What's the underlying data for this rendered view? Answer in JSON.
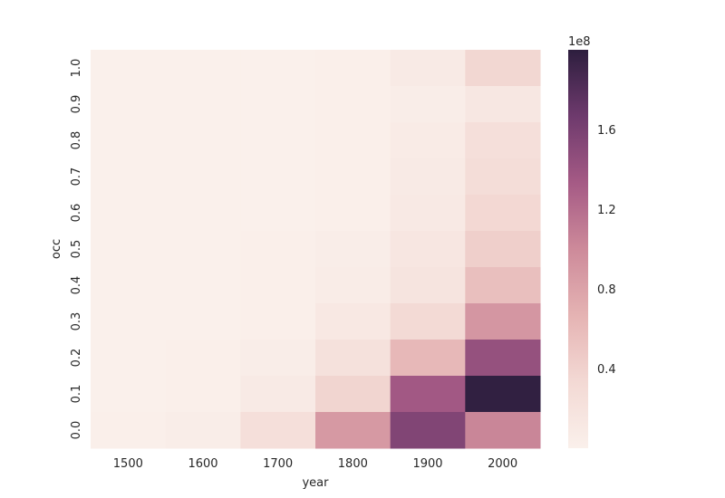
{
  "chart_data": {
    "type": "heatmap",
    "xlabel": "year",
    "ylabel": "occ",
    "x_categories": [
      "1500",
      "1600",
      "1700",
      "1800",
      "1900",
      "2000"
    ],
    "y_categories": [
      "1.0",
      "0.9",
      "0.8",
      "0.7",
      "0.6",
      "0.5",
      "0.4",
      "0.3",
      "0.2",
      "0.1",
      "0.0"
    ],
    "values": [
      [
        0,
        0,
        0,
        2000000,
        8000000,
        35000000
      ],
      [
        0,
        0,
        0,
        1000000,
        4000000,
        13000000
      ],
      [
        0,
        0,
        0,
        2000000,
        7000000,
        24000000
      ],
      [
        0,
        0,
        0,
        2000000,
        8000000,
        28000000
      ],
      [
        0,
        0,
        0,
        2000000,
        10000000,
        34000000
      ],
      [
        0,
        0,
        1000000,
        5000000,
        15000000,
        42000000
      ],
      [
        0,
        0,
        1000000,
        6000000,
        18000000,
        56000000
      ],
      [
        0,
        0,
        2000000,
        11000000,
        32000000,
        90000000
      ],
      [
        0,
        1000000,
        5000000,
        22000000,
        62000000,
        143000000
      ],
      [
        0,
        1000000,
        9000000,
        37000000,
        135000000,
        198000000
      ],
      [
        2000000,
        5000000,
        25000000,
        88000000,
        155000000,
        103000000
      ]
    ],
    "colorbar": {
      "min": 0,
      "max": 200000000,
      "ticks": [
        40000000,
        80000000,
        120000000,
        160000000
      ],
      "tick_labels": [
        "0.4",
        "0.8",
        "1.2",
        "1.6"
      ],
      "offset_label": "1e8"
    },
    "colormap": [
      "#faf0eb",
      "#f3d9d4",
      "#e5b3b3",
      "#cd8a9a",
      "#a55a85",
      "#6e3a6d",
      "#2d1e3e"
    ]
  }
}
